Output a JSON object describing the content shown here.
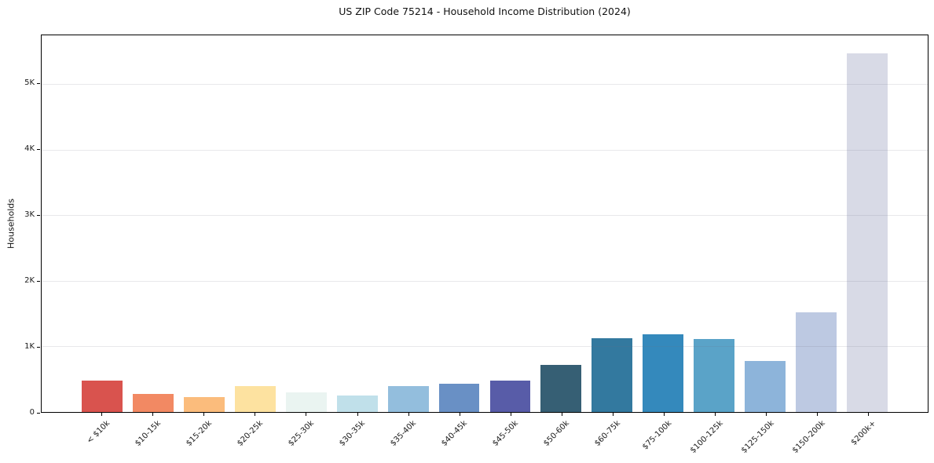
{
  "chart_data": {
    "type": "bar",
    "title": "US ZIP Code 75214 - Household Income Distribution (2024)",
    "xlabel": "",
    "ylabel": "Households",
    "categories": [
      "< $10k",
      "$10-15k",
      "$15-20k",
      "$20-25k",
      "$25-30k",
      "$30-35k",
      "$35-40k",
      "$40-45k",
      "$45-50k",
      "$50-60k",
      "$60-75k",
      "$75-100k",
      "$100-125k",
      "$125-150k",
      "$150-200k",
      "$200k+"
    ],
    "values": [
      480,
      280,
      225,
      395,
      300,
      255,
      400,
      435,
      480,
      720,
      1120,
      1190,
      1110,
      775,
      1520,
      5470
    ],
    "bar_colors": [
      "#d9534e",
      "#f28963",
      "#fbbc7c",
      "#fde2a0",
      "#eaf4f1",
      "#c0e0ea",
      "#93bedd",
      "#6990c5",
      "#585ca8",
      "#365f74",
      "#33799f",
      "#3489bc",
      "#5aa3c8",
      "#8db4da",
      "#bdc9e2",
      "#d8dae6"
    ],
    "ylim": [
      0,
      5740
    ],
    "yticks": {
      "values": [
        0,
        1000,
        2000,
        3000,
        4000,
        5000
      ],
      "labels": [
        "0",
        "1K",
        "2K",
        "3K",
        "4K",
        "5K"
      ]
    },
    "x_tick_rotation_deg": 45,
    "grid": "horizontal-light",
    "legend": "none"
  }
}
